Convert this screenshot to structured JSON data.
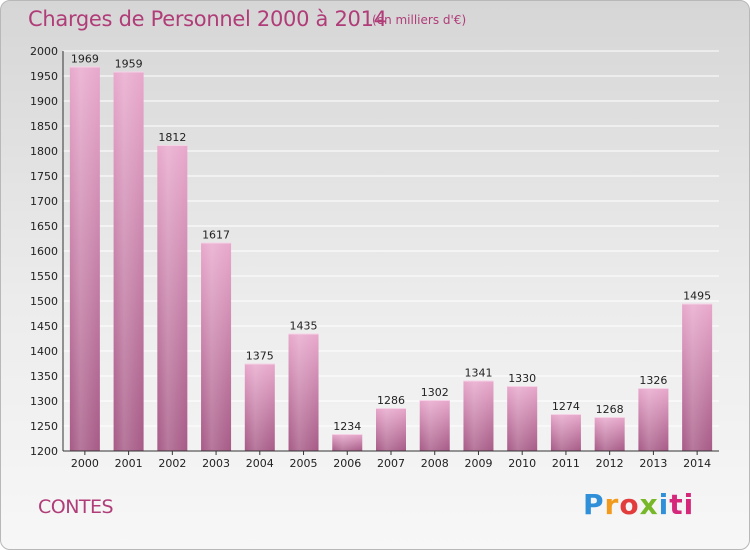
{
  "header": {
    "title": "Charges de Personnel 2000 à 2014",
    "subtitle": "(en milliers d'€)"
  },
  "footer": {
    "commune": "CONTES",
    "logo": [
      "P",
      "r",
      "o",
      "x",
      "i",
      "ti"
    ]
  },
  "colors": {
    "accent": "#b03c78",
    "bar_top": "#e8a8cc",
    "bar_bottom": "#a65a86",
    "grid": "#ffffff"
  },
  "chart_data": {
    "type": "bar",
    "categories": [
      "2000",
      "2001",
      "2002",
      "2003",
      "2004",
      "2005",
      "2006",
      "2007",
      "2008",
      "2009",
      "2010",
      "2011",
      "2012",
      "2013",
      "2014"
    ],
    "values": [
      1969,
      1959,
      1812,
      1617,
      1375,
      1435,
      1234,
      1286,
      1302,
      1341,
      1330,
      1274,
      1268,
      1326,
      1495
    ],
    "ylim": [
      1200,
      2000
    ],
    "yticks": [
      1200,
      1250,
      1300,
      1350,
      1400,
      1450,
      1500,
      1550,
      1600,
      1650,
      1700,
      1750,
      1800,
      1850,
      1900,
      1950,
      2000
    ],
    "grid": true
  }
}
